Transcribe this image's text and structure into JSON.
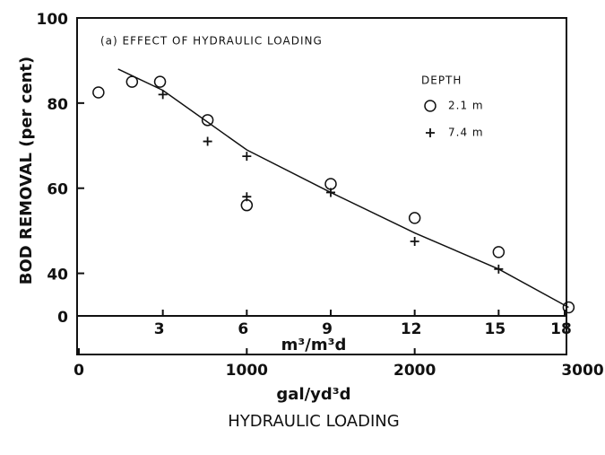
{
  "chart_data": {
    "type": "scatter",
    "title": "(a) EFFECT OF HYDRAULIC LOADING",
    "y_label": "BOD REMOVAL (per cent)",
    "x_label": "m³/m³d",
    "x2_label": "gal/yd³d",
    "x2_title": "HYDRAULIC LOADING",
    "legend_title": "DEPTH",
    "xlim": [
      0,
      18
    ],
    "xticks": [
      3,
      6,
      9,
      12,
      15,
      18
    ],
    "x2lim": [
      0,
      3000
    ],
    "x2ticks": [
      0,
      1000,
      2000,
      3000
    ],
    "ylim": [
      30,
      100
    ],
    "yticks": [
      {
        "value": 30,
        "label": "0"
      },
      40,
      60,
      80,
      100
    ],
    "series": [
      {
        "name": "2.1 m",
        "marker": "circle",
        "color": "#111",
        "x": [
          0.7,
          1.9,
          2.9,
          4.6,
          6,
          9,
          12,
          15,
          17.5
        ],
        "values": [
          82.5,
          85,
          85,
          76,
          56,
          61,
          53,
          45,
          32
        ]
      },
      {
        "name": "7.4 m",
        "marker": "plus",
        "color": "#111",
        "x": [
          3,
          4.6,
          6,
          6,
          9,
          12,
          15
        ],
        "values": [
          82,
          71,
          67.5,
          58,
          59,
          47.5,
          41
        ]
      }
    ],
    "fit_line": {
      "x": [
        1.4,
        3,
        6,
        9,
        12,
        15,
        17.5
      ],
      "values": [
        88,
        83,
        69,
        59,
        49.5,
        41,
        32
      ]
    }
  }
}
